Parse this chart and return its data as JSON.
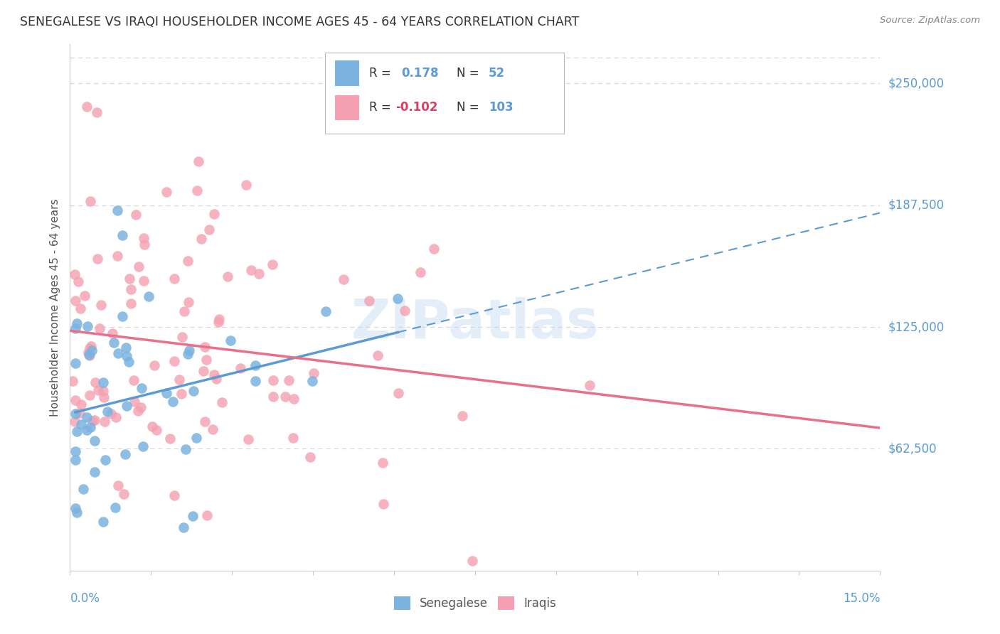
{
  "title": "SENEGALESE VS IRAQI HOUSEHOLDER INCOME AGES 45 - 64 YEARS CORRELATION CHART",
  "source": "Source: ZipAtlas.com",
  "ylabel": "Householder Income Ages 45 - 64 years",
  "ytick_labels": [
    "$62,500",
    "$125,000",
    "$187,500",
    "$250,000"
  ],
  "ytick_values": [
    62500,
    125000,
    187500,
    250000
  ],
  "ymin": 0,
  "ymax": 270000,
  "xmin": 0.0,
  "xmax": 0.15,
  "senegalese_color": "#7ab3e0",
  "iraqi_color": "#f4a0b0",
  "senegalese_R": 0.178,
  "senegalese_N": 52,
  "iraqi_R": -0.102,
  "iraqi_N": 103,
  "watermark": "ZIPatlas",
  "background_color": "#ffffff",
  "grid_color": "#d8d8d8",
  "title_color": "#333333",
  "axis_label_color": "#5b9bd5",
  "trendline_senegalese_color": "#5b9bd5",
  "trendline_iraqi_color": "#e8708a"
}
